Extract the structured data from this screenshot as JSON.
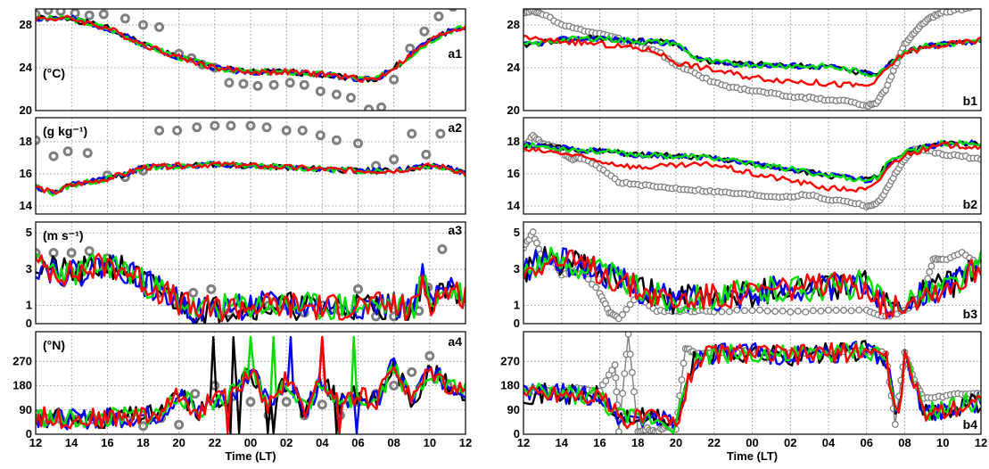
{
  "chart_data": {
    "type": "line",
    "xlabel": "Time (LT)",
    "x_ticks": [
      "12",
      "14",
      "16",
      "18",
      "20",
      "22",
      "00",
      "02",
      "04",
      "06",
      "08",
      "10",
      "12"
    ],
    "series_colors": [
      "#000000",
      "#0000ff",
      "#00dd00",
      "#ff0000"
    ],
    "obs_color": "#7f7f7f",
    "panels": [
      {
        "id": "a1",
        "unit": "(°C)",
        "ylim": [
          20,
          29.5
        ],
        "yticks": [
          "20",
          "24",
          "28"
        ],
        "ytick_values": [
          20,
          24,
          28
        ],
        "model": {
          "x": [
            12,
            14,
            16,
            18,
            20,
            22,
            24,
            26,
            28,
            30,
            31,
            32,
            34,
            35,
            36
          ],
          "y": [
            28.6,
            28.6,
            27.7,
            26.2,
            25.0,
            24.0,
            23.6,
            23.6,
            23.4,
            23.0,
            22.9,
            24.0,
            26.5,
            27.4,
            27.8
          ]
        },
        "obs": {
          "x": [
            12,
            12.7,
            13.4,
            14.2,
            15,
            15.8,
            17,
            18,
            18.9,
            20,
            20.7,
            21.3,
            22,
            22.8,
            23.6,
            24.4,
            25.3,
            26.2,
            27,
            27.9,
            28.8,
            29.6,
            30.6,
            31.3,
            32,
            32.9,
            33.7,
            34.5,
            35.3
          ],
          "y": [
            29,
            29.4,
            29.3,
            29.1,
            28.9,
            29.0,
            28.6,
            28,
            27.8,
            25.3,
            24.9,
            24.3,
            24.0,
            22.6,
            22.5,
            22.3,
            22.4,
            22.6,
            22.4,
            21.8,
            21.5,
            21.2,
            20.1,
            20.3,
            22.9,
            25.8,
            27.4,
            28.8,
            29.7
          ]
        }
      },
      {
        "id": "a2",
        "unit": "(g kg⁻¹)",
        "ylim": [
          13.5,
          19.5
        ],
        "yticks": [
          "14",
          "16",
          "18"
        ],
        "ytick_values": [
          14,
          16,
          18
        ],
        "model": {
          "x": [
            12,
            13,
            14,
            16,
            17,
            18,
            20,
            22,
            24,
            26,
            28,
            30,
            32,
            34,
            35,
            36
          ],
          "y": [
            15.2,
            14.8,
            15.3,
            15.7,
            16.0,
            16.4,
            16.5,
            16.6,
            16.5,
            16.4,
            16.3,
            16.2,
            16.2,
            16.5,
            16.4,
            16.0
          ]
        },
        "obs": {
          "x": [
            12,
            13,
            13.8,
            14.9,
            16,
            17,
            18,
            18.9,
            19.9,
            21,
            22,
            22.9,
            24,
            24.9,
            26,
            26.9,
            27.9,
            28.8,
            30,
            31,
            32,
            33,
            33.8,
            34.6
          ],
          "y": [
            18.1,
            17.1,
            17.4,
            17.3,
            15.9,
            15.8,
            16.2,
            18.7,
            18.7,
            18.9,
            19.0,
            19.0,
            19.0,
            18.9,
            18.7,
            18.7,
            18.4,
            18.1,
            17.9,
            16.5,
            16.9,
            18.5,
            17.2,
            18.5
          ]
        }
      },
      {
        "id": "a3",
        "unit": "(m s⁻¹)",
        "ylim": [
          0,
          5.6
        ],
        "yticks": [
          "0",
          "1",
          "3",
          "5"
        ],
        "ytick_values": [
          0,
          1,
          3,
          5
        ],
        "model": {
          "x": [
            12,
            13,
            14,
            15,
            16,
            17,
            18,
            19,
            20,
            21,
            22,
            24,
            26,
            28,
            30,
            32,
            33,
            33.6,
            34,
            35,
            36
          ],
          "y": [
            3.2,
            3.0,
            2.7,
            3.0,
            3.3,
            3.0,
            2.3,
            1.8,
            1.2,
            0.7,
            0.8,
            1.0,
            1.0,
            0.9,
            1.0,
            1.0,
            0.7,
            2.5,
            1.2,
            1.8,
            1.6
          ]
        },
        "obs": {
          "x": [
            12,
            13,
            14,
            15,
            16,
            17,
            18,
            19,
            20,
            20.8,
            21.8,
            22.8,
            24,
            25,
            26,
            27,
            28,
            29,
            30,
            31,
            32,
            32.8,
            33.4,
            33.9,
            34.7
          ],
          "y": [
            3.9,
            3.9,
            3.9,
            4.0,
            3.6,
            2.9,
            2.1,
            1.7,
            1.0,
            1.7,
            1.9,
            0.6,
            0.7,
            1.0,
            1.0,
            0.6,
            1.0,
            0.7,
            1.9,
            0.4,
            0.4,
            1.0,
            0.7,
            2.0,
            4.1
          ]
        }
      },
      {
        "id": "a4",
        "unit": "(°N)",
        "ylim": [
          0,
          380
        ],
        "yticks": [
          "0",
          "90",
          "180",
          "270"
        ],
        "ytick_values": [
          0,
          90,
          180,
          270
        ],
        "model": {
          "x": [
            12,
            14,
            16,
            18,
            19,
            20,
            20.5,
            21,
            22,
            23,
            24,
            25,
            26,
            27,
            28,
            29,
            30,
            31,
            32,
            33,
            34,
            35,
            36
          ],
          "y": [
            65,
            55,
            60,
            68,
            75,
            150,
            120,
            80,
            130,
            150,
            240,
            110,
            200,
            90,
            200,
            110,
            150,
            120,
            260,
            120,
            240,
            180,
            160
          ]
        },
        "obs": {
          "x": [
            12,
            12.6,
            13.4,
            14.3,
            15.2,
            16,
            17.1,
            18,
            19,
            20,
            20.9,
            22,
            23,
            24,
            25,
            26,
            27,
            28,
            29,
            30,
            31,
            32,
            33,
            34,
            35
          ],
          "y": [
            75,
            58,
            55,
            55,
            55,
            60,
            55,
            30,
            60,
            35,
            150,
            180,
            140,
            120,
            70,
            120,
            70,
            110,
            70,
            120,
            150,
            180,
            230,
            290,
            180
          ]
        }
      },
      {
        "id": "b1",
        "unit": "",
        "ylim": [
          20,
          29.5
        ],
        "yticks": [
          "20",
          "24",
          "28"
        ],
        "ytick_values": [
          20,
          24,
          28
        ],
        "model": {
          "x": [
            12,
            14,
            16,
            17,
            18,
            19,
            20,
            21,
            22,
            24,
            26,
            28,
            30,
            30.6,
            31,
            32,
            33,
            34,
            36
          ],
          "y": [
            26.1,
            26.6,
            26.8,
            26.6,
            26.5,
            26.4,
            26.3,
            24.9,
            24.5,
            24.3,
            24.2,
            24.1,
            23.5,
            23.3,
            24.0,
            25.6,
            26.0,
            26.2,
            26.4
          ]
        },
        "red": {
          "x": [
            12,
            13,
            14,
            16,
            18,
            19,
            20,
            22,
            24,
            26,
            28,
            30,
            30.6,
            31,
            32,
            33,
            34,
            36
          ],
          "y": [
            27,
            26.5,
            26.5,
            26.2,
            25.8,
            25.5,
            24.5,
            23.8,
            23.1,
            22.8,
            22.5,
            22.3,
            22.8,
            23.8,
            25.4,
            25.8,
            26.1,
            26.6
          ]
        },
        "obs": {
          "x": [
            12,
            12.5,
            13,
            14,
            15,
            16,
            17,
            18,
            19,
            20,
            21,
            22,
            23,
            24,
            25,
            26,
            27,
            28,
            29,
            30,
            30.5,
            31,
            31.5,
            32,
            32.5,
            33,
            33.5,
            34,
            35,
            36
          ],
          "y": [
            29.2,
            29.3,
            29.0,
            28.1,
            27.5,
            27.2,
            26.7,
            26.0,
            25.6,
            24.2,
            23.5,
            22.6,
            22.1,
            21.9,
            21.6,
            21.3,
            21.2,
            21.0,
            20.9,
            20.4,
            20.7,
            22,
            24.1,
            26.2,
            27.3,
            28.2,
            28.8,
            29.2,
            29.5,
            29.8
          ]
        }
      },
      {
        "id": "b2",
        "unit": "",
        "ylim": [
          13.5,
          19.5
        ],
        "yticks": [
          "14",
          "16",
          "18"
        ],
        "ytick_values": [
          14,
          16,
          18
        ],
        "model": {
          "x": [
            12,
            14,
            16,
            18,
            20,
            22,
            24,
            26,
            28,
            30,
            30.6,
            31,
            32,
            34,
            36
          ],
          "y": [
            17.8,
            17.6,
            17.4,
            17.2,
            17.1,
            17.0,
            16.6,
            16.3,
            15.9,
            15.6,
            15.8,
            16.5,
            17.4,
            17.9,
            17.9
          ]
        },
        "red": {
          "x": [
            12,
            14,
            16,
            18,
            20,
            22,
            24,
            26,
            28,
            30,
            30.6,
            31,
            32,
            34,
            36
          ],
          "y": [
            17.5,
            17.3,
            16.8,
            16.4,
            16.5,
            16.6,
            16.0,
            15.6,
            15.1,
            15.0,
            15.4,
            16.3,
            17.2,
            17.8,
            17.7
          ]
        },
        "obs": {
          "x": [
            12,
            12.5,
            13,
            13.5,
            14,
            14.5,
            15,
            16,
            17,
            18,
            19,
            20,
            21,
            22,
            23,
            24,
            25,
            26,
            27,
            28,
            29,
            30,
            30.5,
            31,
            31.5,
            32,
            32.5,
            33,
            34,
            35,
            36
          ],
          "y": [
            17.6,
            18.4,
            17.9,
            17.7,
            17.4,
            16.9,
            17.0,
            16.4,
            15.5,
            15.3,
            15.2,
            15.1,
            15.0,
            14.9,
            14.8,
            14.7,
            14.6,
            14.6,
            14.7,
            14.4,
            14.3,
            14.0,
            14.1,
            14.9,
            16.0,
            16.9,
            17.5,
            17.5,
            17.2,
            17.1,
            16.9
          ]
        }
      },
      {
        "id": "b3",
        "unit": "",
        "ylim": [
          0,
          5.6
        ],
        "yticks": [
          "0",
          "1",
          "3",
          "5"
        ],
        "ytick_values": [
          0,
          1,
          3,
          5
        ],
        "model": {
          "x": [
            12,
            13,
            14,
            15,
            16,
            17,
            18,
            19,
            20,
            21,
            22,
            24,
            26,
            28,
            30,
            31,
            32,
            33,
            34,
            35,
            36
          ],
          "y": [
            2.9,
            3.5,
            3.4,
            3.2,
            2.9,
            2.4,
            1.9,
            1.6,
            1.2,
            1.5,
            1.5,
            1.7,
            2.0,
            2.0,
            2.2,
            0.9,
            1.3,
            1.7,
            2.0,
            2.4,
            3.3
          ]
        },
        "obs": {
          "x": [
            12,
            12.5,
            13,
            13.5,
            14,
            15,
            16,
            16.5,
            17,
            18,
            19,
            20,
            21,
            22,
            24,
            26,
            28,
            30,
            31,
            32,
            33,
            33.5,
            34,
            35,
            36
          ],
          "y": [
            4.2,
            5.0,
            3.5,
            3.6,
            2.7,
            3.0,
            1.7,
            0.6,
            0.3,
            1.5,
            0.7,
            0.7,
            0.7,
            0.7,
            0.7,
            0.7,
            0.7,
            0.7,
            0.4,
            0.7,
            1.7,
            3.6,
            3.5,
            3.9,
            3.2
          ]
        }
      },
      {
        "id": "b4",
        "unit": "",
        "ylim": [
          0,
          380
        ],
        "yticks": [
          "0",
          "90",
          "180",
          "270"
        ],
        "ytick_values": [
          0,
          90,
          180,
          270
        ],
        "model": {
          "x": [
            12,
            13,
            14,
            16,
            17,
            18,
            19,
            20,
            21,
            22,
            24,
            26,
            28,
            30,
            31,
            31.6,
            32,
            33,
            34,
            35,
            36
          ],
          "y": [
            150,
            150,
            150,
            140,
            60,
            60,
            60,
            40,
            280,
            300,
            300,
            290,
            300,
            310,
            290,
            40,
            280,
            80,
            90,
            110,
            120
          ]
        },
        "obs": {
          "x": [
            12,
            13,
            14,
            15,
            16,
            16.8,
            17,
            17.5,
            18,
            18.5,
            19,
            19.5,
            20,
            20.5,
            21,
            22,
            24,
            26,
            28,
            30,
            31,
            31.5,
            32,
            32.5,
            33,
            34,
            35,
            36
          ],
          "y": [
            160,
            160,
            160,
            170,
            160,
            260,
            10,
            370,
            10,
            20,
            10,
            30,
            20,
            320,
            300,
            300,
            310,
            300,
            300,
            310,
            300,
            40,
            300,
            200,
            130,
            140,
            150,
            150
          ]
        }
      }
    ],
    "legend": "none"
  }
}
